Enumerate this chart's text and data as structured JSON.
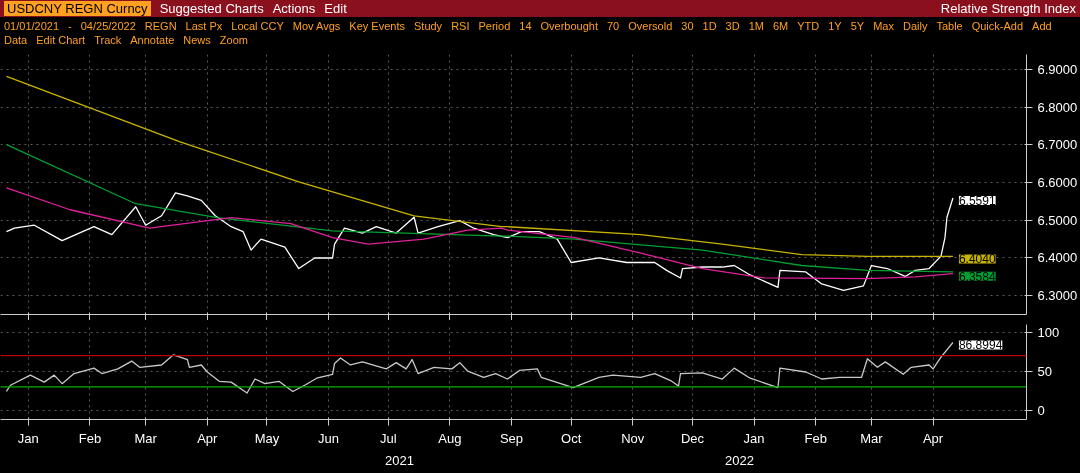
{
  "chart_data": [
    {
      "type": "line",
      "title": "USDCNY REGN Curncy",
      "subtitle": "Relative Strength Index",
      "annotations": [
        "Suggested Charts",
        "Actions",
        "Edit",
        "01/01/2021",
        "-",
        "04/25/2022",
        "REGN",
        "Last Px",
        "Local CCY",
        "Mov Avgs",
        "Key Events",
        "Study",
        "RSI",
        "Period",
        "14",
        "Overbought",
        "70",
        "Oversold",
        "30",
        "1D",
        "3D",
        "1M",
        "6M",
        "YTD",
        "1Y",
        "5Y",
        "Max",
        "Daily",
        "Table",
        "Quick-Add",
        "Add Data",
        "Edit Chart",
        "Track",
        "Annotate",
        "News",
        "Zoom",
        {
          "text": "6.5591",
          "x": "2022-04-25",
          "y": 6.5591
        },
        {
          "text": "6.4040",
          "x": "2022-04-25",
          "y": 6.404
        },
        {
          "text": "6.3584",
          "x": "2022-04-25",
          "y": 6.3584
        }
      ],
      "series": [
        {
          "color": "#ffffff",
          "x": [
            "2021-01-04",
            "2021-01-08",
            "2021-01-18",
            "2021-02-01",
            "2021-02-17",
            "2021-02-26",
            "2021-03-10",
            "2021-03-15",
            "2021-03-23",
            "2021-03-30",
            "2021-04-05",
            "2021-04-12",
            "2021-04-19",
            "2021-04-27",
            "2021-05-03",
            "2021-05-07",
            "2021-05-12",
            "2021-05-24",
            "2021-05-31",
            "2021-06-08",
            "2021-06-17",
            "2021-06-18",
            "2021-06-23",
            "2021-07-02",
            "2021-07-09",
            "2021-07-19",
            "2021-07-28",
            "2021-07-30",
            "2021-08-09",
            "2021-08-20",
            "2021-08-27",
            "2021-09-06",
            "2021-09-13",
            "2021-09-20",
            "2021-09-29",
            "2021-10-08",
            "2021-10-15",
            "2021-10-29",
            "2021-11-12",
            "2021-11-26",
            "2021-12-02",
            "2021-12-09",
            "2021-12-10",
            "2021-12-20",
            "2021-12-30",
            "2022-01-05",
            "2022-01-13",
            "2022-01-27",
            "2022-01-28",
            "2022-02-10",
            "2022-02-18",
            "2022-03-01",
            "2022-03-11",
            "2022-03-15",
            "2022-03-23",
            "2022-04-01",
            "2022-04-06",
            "2022-04-13",
            "2022-04-19",
            "2022-04-21",
            "2022-04-22",
            "2022-04-25"
          ],
          "values": [
            6.47,
            6.479,
            6.487,
            6.446,
            6.483,
            6.462,
            6.536,
            6.487,
            6.512,
            6.573,
            6.565,
            6.553,
            6.512,
            6.483,
            6.47,
            6.421,
            6.45,
            6.429,
            6.372,
            6.4,
            6.4,
            6.437,
            6.479,
            6.466,
            6.483,
            6.466,
            6.508,
            6.466,
            6.483,
            6.499,
            6.479,
            6.462,
            6.454,
            6.47,
            6.47,
            6.45,
            6.388,
            6.4,
            6.388,
            6.388,
            6.367,
            6.347,
            6.372,
            6.376,
            6.376,
            6.38,
            6.355,
            6.322,
            6.367,
            6.363,
            6.331,
            6.314,
            6.326,
            6.38,
            6.372,
            6.351,
            6.367,
            6.372,
            6.405,
            6.454,
            6.508,
            6.5591
          ]
        },
        {
          "color": "#c8b400",
          "x": [
            "2021-01-04",
            "2021-04-01",
            "2021-05-31",
            "2021-07-28",
            "2021-09-10",
            "2021-09-13",
            "2021-11-19",
            "2021-12-30",
            "2022-02-08",
            "2022-03-13",
            "2022-04-25"
          ],
          "values": [
            6.882,
            6.709,
            6.602,
            6.512,
            6.483,
            6.483,
            6.462,
            6.437,
            6.409,
            6.404,
            6.404
          ]
        },
        {
          "color": "#00a030",
          "x": [
            "2021-01-04",
            "2021-03-10",
            "2021-04-20",
            "2021-06-17",
            "2021-09-10",
            "2021-09-13",
            "2021-10-17",
            "2021-11-19",
            "2021-12-20",
            "2022-02-08",
            "2022-03-13",
            "2022-04-25"
          ],
          "values": [
            6.701,
            6.544,
            6.507,
            6.472,
            6.458,
            6.458,
            6.45,
            6.435,
            6.421,
            6.38,
            6.367,
            6.363
          ]
        },
        {
          "color": "#e0209a",
          "x": [
            "2021-01-04",
            "2021-02-05",
            "2021-03-17",
            "2021-04-27",
            "2021-05-27",
            "2021-06-17",
            "2021-07-05",
            "2021-08-02",
            "2021-08-24",
            "2021-09-10",
            "2021-09-13",
            "2021-10-17",
            "2021-11-19",
            "2021-12-20",
            "2022-01-20",
            "2022-03-13",
            "2022-04-06",
            "2022-04-25"
          ],
          "values": [
            6.586,
            6.528,
            6.479,
            6.507,
            6.491,
            6.454,
            6.437,
            6.45,
            6.474,
            6.479,
            6.474,
            6.454,
            6.413,
            6.372,
            6.347,
            6.345,
            6.35,
            6.3584
          ]
        }
      ],
      "xlim": [
        "2021-01-01",
        "2022-06-01"
      ],
      "ylim": [
        6.25,
        6.94
      ],
      "yticks": [
        {
          "value": 6.3,
          "label": "6.3000"
        },
        {
          "value": 6.4,
          "label": "6.4000"
        },
        {
          "value": 6.5,
          "label": "6.5000"
        },
        {
          "value": 6.6,
          "label": "6.6000"
        },
        {
          "value": 6.7,
          "label": "6.7000"
        },
        {
          "value": 6.8,
          "label": "6.8000"
        },
        {
          "value": 6.9,
          "label": "6.9000"
        }
      ],
      "xticks": [
        {
          "value": "2021-01-15",
          "label": null
        },
        {
          "value": "2021-02-15",
          "label": null
        },
        {
          "value": "2021-03-15",
          "label": null
        },
        {
          "value": "2021-04-15",
          "label": null
        },
        {
          "value": "2021-05-15",
          "label": null
        },
        {
          "value": "2021-06-15",
          "label": null
        },
        {
          "value": "2021-07-15",
          "label": null
        },
        {
          "value": "2021-08-15",
          "label": null
        },
        {
          "value": "2021-09-15",
          "label": null
        },
        {
          "value": "2021-10-15",
          "label": null
        },
        {
          "value": "2021-11-15",
          "label": null
        },
        {
          "value": "2021-12-15",
          "label": null
        },
        {
          "value": "2022-01-15",
          "label": null
        },
        {
          "value": "2022-02-15",
          "label": null
        },
        {
          "value": "2022-03-15",
          "label": null
        },
        {
          "value": "2022-04-15",
          "label": null
        }
      ],
      "tick_labels": "y",
      "grid": true,
      "line_style": "solid"
    },
    {
      "type": "line",
      "annotations": [
        "2021",
        "2022",
        {
          "text": "86.8994",
          "x": "2022-04-25",
          "y": 86.8994
        }
      ],
      "series": [
        {
          "color": "#c8c8c8",
          "x": [
            "2021-01-04",
            "2021-01-06",
            "2021-01-16",
            "2021-01-23",
            "2021-01-28",
            "2021-02-01",
            "2021-02-07",
            "2021-02-17",
            "2021-02-21",
            "2021-03-01",
            "2021-03-08",
            "2021-03-12",
            "2021-03-23",
            "2021-03-29",
            "2021-04-05",
            "2021-04-06",
            "2021-04-12",
            "2021-04-15",
            "2021-04-21",
            "2021-04-27",
            "2021-05-05",
            "2021-05-09",
            "2021-05-14",
            "2021-05-21",
            "2021-05-28",
            "2021-06-03",
            "2021-06-09",
            "2021-06-17",
            "2021-06-18",
            "2021-06-21",
            "2021-06-26",
            "2021-07-02",
            "2021-07-14",
            "2021-07-19",
            "2021-07-24",
            "2021-07-27",
            "2021-07-30",
            "2021-08-07",
            "2021-08-16",
            "2021-08-20",
            "2021-08-24",
            "2021-09-01",
            "2021-09-07",
            "2021-09-13",
            "2021-09-19",
            "2021-09-28",
            "2021-09-30",
            "2021-10-16",
            "2021-10-29",
            "2021-11-05",
            "2021-11-19",
            "2021-11-26",
            "2021-12-04",
            "2021-12-08",
            "2021-12-09",
            "2021-12-20",
            "2021-12-30",
            "2022-01-05",
            "2022-01-13",
            "2022-01-27",
            "2022-01-28",
            "2022-02-10",
            "2022-02-18",
            "2022-02-27",
            "2022-03-10",
            "2022-03-13",
            "2022-03-18",
            "2022-03-22",
            "2022-03-31",
            "2022-04-04",
            "2022-04-13",
            "2022-04-15",
            "2022-04-19",
            "2022-04-25"
          ],
          "values": [
            24,
            32,
            45,
            36,
            45,
            34,
            47,
            54,
            47,
            53,
            63,
            55,
            58,
            71,
            65,
            55,
            58,
            49,
            37,
            36,
            22,
            40,
            34,
            37,
            24,
            32,
            41,
            46,
            60,
            67,
            58,
            62,
            53,
            61,
            53,
            65,
            47,
            55,
            53,
            61,
            50,
            42,
            47,
            40,
            51,
            53,
            42,
            29,
            42,
            45,
            42,
            47,
            38,
            31,
            47,
            48,
            40,
            54,
            41,
            29,
            54,
            49,
            40,
            42,
            42,
            66,
            55,
            62,
            46,
            55,
            58,
            53,
            68,
            86.8994
          ]
        }
      ],
      "xlim": [
        "2021-01-01",
        "2022-06-01"
      ],
      "ylim": [
        -12,
        110
      ],
      "yticks": [
        0,
        50,
        100
      ],
      "xticks": [
        {
          "value": "2021-01-15",
          "label": "Jan"
        },
        {
          "value": "2021-02-15",
          "label": "Feb"
        },
        {
          "value": "2021-03-15",
          "label": "Mar"
        },
        {
          "value": "2021-04-15",
          "label": "Apr"
        },
        {
          "value": "2021-05-15",
          "label": "May"
        },
        {
          "value": "2021-06-15",
          "label": "Jun"
        },
        {
          "value": "2021-07-15",
          "label": "Jul"
        },
        {
          "value": "2021-08-15",
          "label": "Aug"
        },
        {
          "value": "2021-09-15",
          "label": "Sep"
        },
        {
          "value": "2021-10-15",
          "label": "Oct"
        },
        {
          "value": "2021-11-15",
          "label": "Nov"
        },
        {
          "value": "2021-12-15",
          "label": "Dec"
        },
        {
          "value": "2022-01-15",
          "label": "Jan"
        },
        {
          "value": "2022-02-15",
          "label": "Feb"
        },
        {
          "value": "2022-03-15",
          "label": "Mar"
        },
        {
          "value": "2022-04-15",
          "label": "Apr"
        }
      ],
      "ref_lines": [
        {
          "axis": "y",
          "value": 70,
          "color": "#c00000"
        },
        {
          "axis": "y",
          "value": 30,
          "color": "#00b000"
        }
      ],
      "grid": true,
      "line_style": "solid"
    }
  ]
}
